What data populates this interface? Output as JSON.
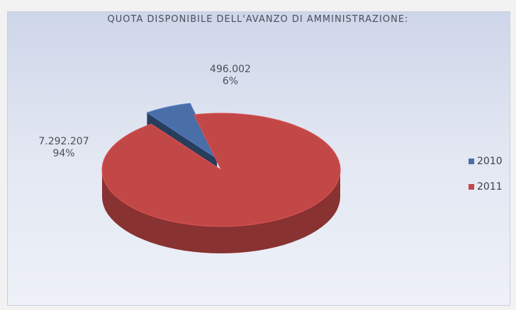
{
  "chart_data": {
    "type": "pie",
    "title": "QUOTA DISPONIBILE DELL'AVANZO DI AMMINISTRAZIONE:",
    "slices": [
      {
        "label": "2010",
        "value": 496002,
        "value_text": "496.002",
        "percent_text": "6%",
        "color": "#4a6ea8",
        "exploded": true
      },
      {
        "label": "2011",
        "value": 7292207,
        "value_text": "7.292.207",
        "percent_text": "94%",
        "color": "#c24848",
        "exploded": false
      }
    ],
    "style": "3d",
    "legend_position": "right"
  }
}
